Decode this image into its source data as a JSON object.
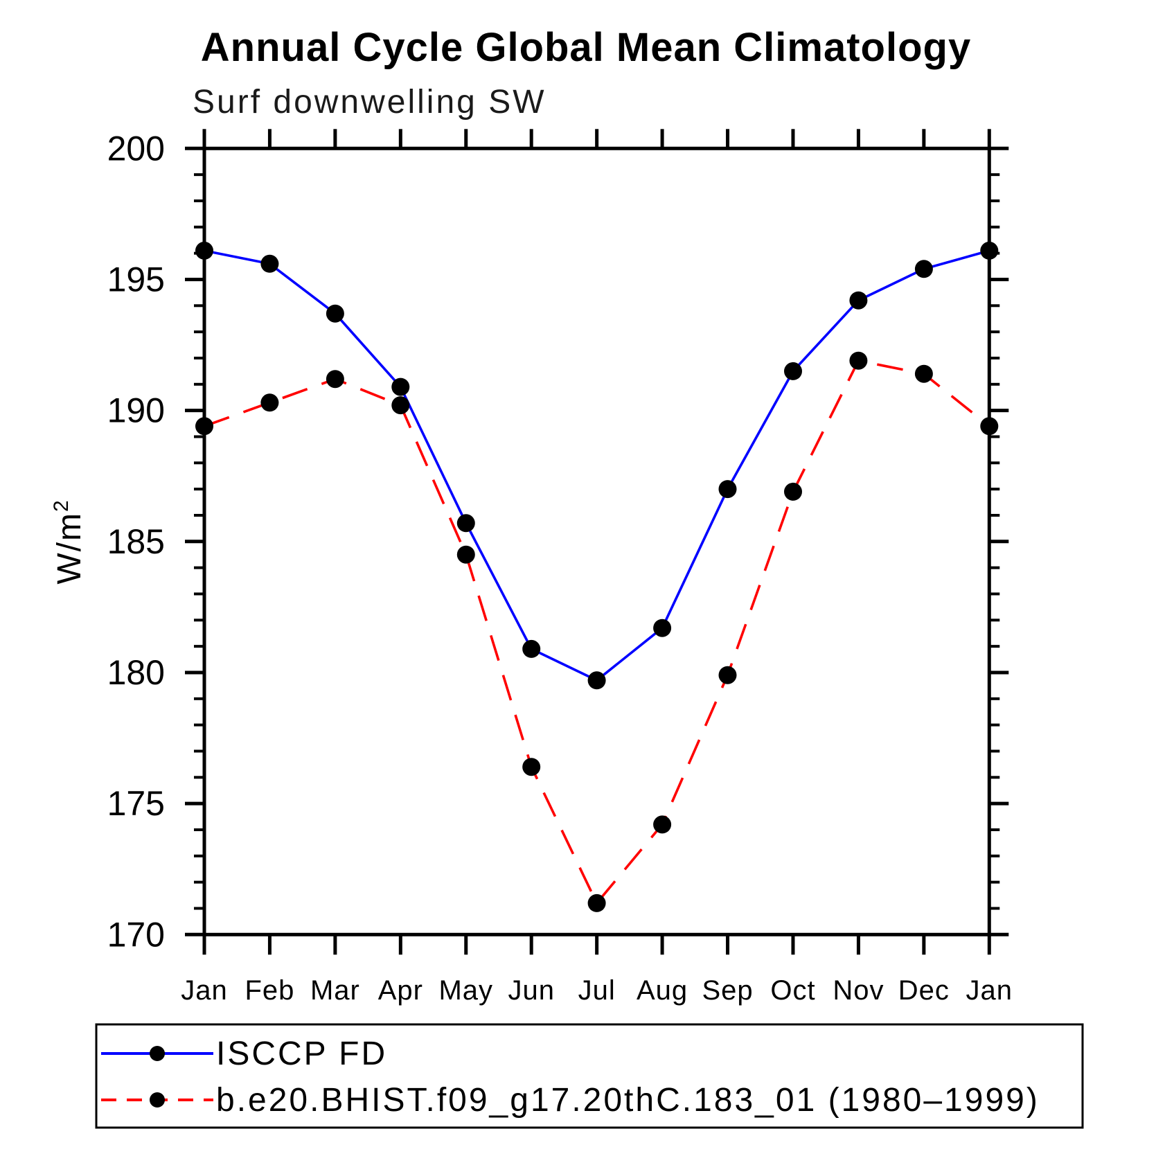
{
  "page": {
    "background": "#ffffff",
    "axis_color": "#000000"
  },
  "chart_data": {
    "type": "line",
    "title": "Annual Cycle Global Mean Climatology",
    "subtitle": "Surf downwelling SW",
    "ylabel_base": "W/m",
    "ylabel_exponent": "2",
    "categories": [
      "Jan",
      "Feb",
      "Mar",
      "Apr",
      "May",
      "Jun",
      "Jul",
      "Aug",
      "Sep",
      "Oct",
      "Nov",
      "Dec",
      "Jan"
    ],
    "y_ticks": [
      170,
      175,
      180,
      185,
      190,
      195,
      200
    ],
    "y_minor_step": 1,
    "ylim": [
      170,
      200
    ],
    "grid": false,
    "legend_position": "bottom-left-box",
    "series": [
      {
        "name": "ISCCP FD",
        "color": "#0000ff",
        "line_style": "solid",
        "marker": "filled-circle",
        "marker_color": "#000000",
        "values": [
          196.1,
          195.6,
          193.7,
          190.9,
          185.7,
          180.9,
          179.7,
          181.7,
          187.0,
          191.5,
          194.2,
          195.4,
          196.1
        ]
      },
      {
        "name": "b.e20.BHIST.f09_g17.20thC.183_01 (1980–1999)",
        "color": "#ff0000",
        "line_style": "dashed",
        "marker": "filled-circle",
        "marker_color": "#000000",
        "values": [
          189.4,
          190.3,
          191.2,
          190.2,
          184.5,
          176.4,
          171.2,
          174.2,
          179.9,
          186.9,
          191.9,
          191.4,
          189.4
        ]
      }
    ]
  }
}
